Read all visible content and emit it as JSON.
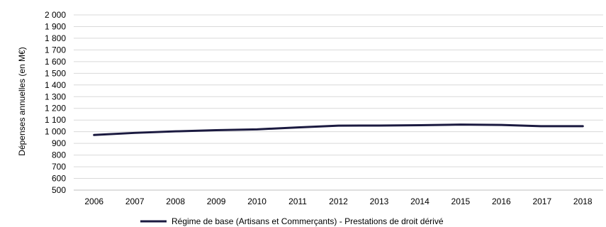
{
  "chart_data": {
    "type": "line",
    "title": "",
    "xlabel": "",
    "ylabel": "Dépenses annuelles (en M€)",
    "categories": [
      "2006",
      "2007",
      "2008",
      "2009",
      "2010",
      "2011",
      "2012",
      "2013",
      "2014",
      "2015",
      "2016",
      "2017",
      "2018"
    ],
    "y_tick_labels": [
      "500",
      "600",
      "700",
      "800",
      "900",
      "1 000",
      "1 100",
      "1 200",
      "1 300",
      "1 400",
      "1 500",
      "1 600",
      "1 700",
      "1 800",
      "1 900",
      "2 000"
    ],
    "ylim": [
      500,
      2000
    ],
    "ystep": 100,
    "grid": true,
    "legend_position": "bottom",
    "series": [
      {
        "name": "Régime de base (Artisans et Commerçants) - Prestations de droit dérivé",
        "color": "#1b1a40",
        "values": [
          972,
          990,
          1003,
          1013,
          1020,
          1037,
          1052,
          1053,
          1056,
          1061,
          1058,
          1047,
          1047
        ]
      }
    ]
  }
}
